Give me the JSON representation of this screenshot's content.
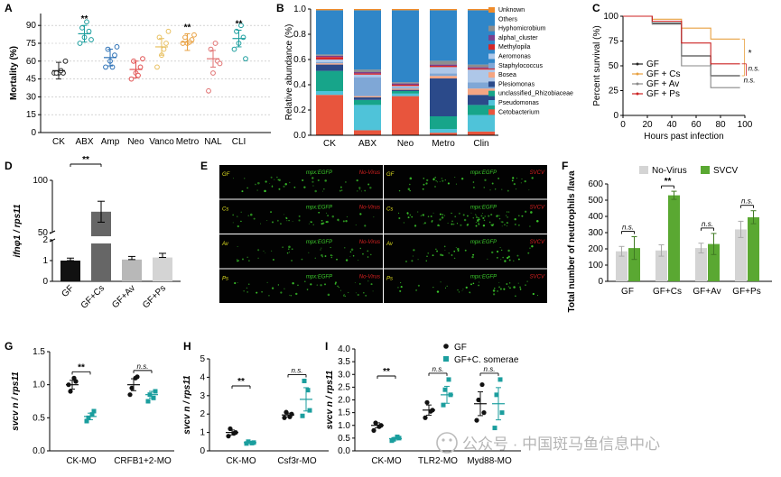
{
  "figure": {
    "panel_labels": [
      "A",
      "B",
      "C",
      "D",
      "E",
      "F",
      "G",
      "H",
      "I"
    ],
    "watermark": "公众号 · 中国斑马鱼信息中心",
    "colors": {
      "black": "#222222",
      "dark_gray": "#555555",
      "gray": "#a8a8a8",
      "light_gray": "#d4d4d4",
      "green": "#5aa832",
      "teal": "#1b9e9e",
      "orange": "#e8a040",
      "red": "#cc2222"
    }
  },
  "chart_data": [
    {
      "panel": "A",
      "type": "scatter",
      "ylabel": "Mortality (%)",
      "ylim": [
        0,
        100
      ],
      "yticks": [
        "0",
        "15",
        "30",
        "45",
        "60",
        "75",
        "90"
      ],
      "categories": [
        "CK",
        "ABX",
        "Amp",
        "Neo",
        "Vanco",
        "Metro",
        "NAL",
        "CLI"
      ],
      "colors": [
        "#222222",
        "#1b9e9e",
        "#2a6fb5",
        "#e05050",
        "#e8c060",
        "#e8a040",
        "#e07070",
        "#1b9e9e"
      ],
      "means": [
        52,
        83,
        63,
        53,
        72,
        76,
        62,
        79
      ],
      "points": [
        [
          50,
          50,
          50,
          50,
          52,
          60
        ],
        [
          75,
          80,
          85,
          88,
          93,
          78
        ],
        [
          55,
          60,
          65,
          70,
          55,
          72
        ],
        [
          45,
          50,
          55,
          60,
          48,
          62
        ],
        [
          55,
          65,
          75,
          80,
          70,
          85
        ],
        [
          75,
          75,
          78,
          80,
          76,
          82
        ],
        [
          35,
          50,
          60,
          70,
          75,
          58
        ],
        [
          70,
          75,
          80,
          85,
          90,
          62
        ]
      ],
      "significance": [
        "",
        "**",
        "",
        "",
        "",
        "**",
        "",
        "**"
      ]
    },
    {
      "panel": "B",
      "type": "bar",
      "stacked": true,
      "ylabel": "Relative abundance (%)",
      "ylim": [
        0,
        1
      ],
      "yticks": [
        "0.0",
        "0.2",
        "0.4",
        "0.6",
        "0.8",
        "1.0"
      ],
      "categories": [
        "CK",
        "ABX",
        "Neo",
        "Metro",
        "Clin"
      ],
      "legend": [
        "Unknown",
        "Others",
        "Hyphomicrobium",
        "alphaI_cluster",
        "Methylopila",
        "Aeromonas",
        "Staphylococcus",
        "Bosea",
        "Plesiomonas",
        "unclassified_Rhizobiaceae",
        "Pseudomonas",
        "Cetobacterium"
      ],
      "series_colors": [
        "#ef8b2a",
        "#2f86c8",
        "#8e8e8e",
        "#7b3f8c",
        "#d62728",
        "#aec7e8",
        "#7fa7d6",
        "#f4a582",
        "#2b4a8a",
        "#17a58a",
        "#4fc3d9",
        "#e8553d"
      ],
      "series": [
        {
          "name": "Unknown",
          "values": [
            0.01,
            0.01,
            0.01,
            0.01,
            0.01
          ]
        },
        {
          "name": "Others",
          "values": [
            0.35,
            0.47,
            0.57,
            0.4,
            0.43
          ]
        },
        {
          "name": "Hyphomicrobium",
          "values": [
            0.01,
            0.02,
            0.01,
            0.03,
            0.02
          ]
        },
        {
          "name": "alphaI_cluster",
          "values": [
            0.01,
            0.01,
            0.01,
            0.01,
            0.01
          ]
        },
        {
          "name": "Methylopila",
          "values": [
            0.02,
            0.01,
            0.01,
            0.01,
            0.01
          ]
        },
        {
          "name": "Aeromonas",
          "values": [
            0.02,
            0.02,
            0.01,
            0.05,
            0.1
          ]
        },
        {
          "name": "Staphylococcus",
          "values": [
            0.01,
            0.15,
            0.01,
            0.02,
            0.05
          ]
        },
        {
          "name": "Bosea",
          "values": [
            0.01,
            0.01,
            0.01,
            0.02,
            0.05
          ]
        },
        {
          "name": "Plesiomonas",
          "values": [
            0.05,
            0.02,
            0.01,
            0.3,
            0.08
          ]
        },
        {
          "name": "unclassified_Rhizobiaceae",
          "values": [
            0.16,
            0.04,
            0.02,
            0.1,
            0.08
          ]
        },
        {
          "name": "Pseudomonas",
          "values": [
            0.03,
            0.2,
            0.02,
            0.03,
            0.13
          ]
        },
        {
          "name": "Cetobacterium",
          "values": [
            0.32,
            0.04,
            0.31,
            0.02,
            0.03
          ]
        }
      ]
    },
    {
      "panel": "C",
      "type": "line",
      "xlabel": "Hours past infection",
      "ylabel": "Percent survival (%)",
      "xlim": [
        0,
        100
      ],
      "ylim": [
        0,
        100
      ],
      "xticks": [
        "0",
        "20",
        "40",
        "60",
        "80",
        "100"
      ],
      "yticks": [
        "0",
        "25",
        "50",
        "75",
        "100"
      ],
      "series": [
        {
          "name": "GF",
          "color": "#222222",
          "x": [
            0,
            24,
            24,
            48,
            48,
            72,
            72,
            96
          ],
          "y": [
            100,
            100,
            93,
            93,
            60,
            60,
            40,
            40
          ]
        },
        {
          "name": "GF + Cs",
          "color": "#e8a040",
          "x": [
            0,
            24,
            24,
            48,
            48,
            72,
            72,
            96
          ],
          "y": [
            100,
            100,
            97,
            97,
            88,
            88,
            77,
            77
          ]
        },
        {
          "name": "GF + Av",
          "color": "#888888",
          "x": [
            0,
            24,
            24,
            48,
            48,
            72,
            72,
            96
          ],
          "y": [
            100,
            100,
            92,
            92,
            50,
            50,
            28,
            28
          ]
        },
        {
          "name": "GF + Ps",
          "color": "#cc2222",
          "x": [
            0,
            24,
            24,
            48,
            48,
            72,
            72,
            96
          ],
          "y": [
            100,
            100,
            95,
            95,
            73,
            73,
            52,
            52
          ]
        }
      ],
      "annotations": [
        "*",
        "n.s.",
        "n.s."
      ]
    },
    {
      "panel": "D",
      "type": "bar",
      "broken_axis": true,
      "ylabel": "ifnφ1 / rps11",
      "yticks": [
        "0",
        "1",
        "2",
        "50",
        "100"
      ],
      "categories": [
        "GF",
        "GF+Cs",
        "GF+Av",
        "GF+Ps"
      ],
      "colors": [
        "#111111",
        "#666666",
        "#b8b8b8",
        "#d4d4d4"
      ],
      "values": [
        1.0,
        70,
        1.05,
        1.15
      ],
      "errors": [
        0.12,
        10,
        0.15,
        0.2
      ],
      "significance": [
        {
          "between": [
            0,
            1
          ],
          "label": "**"
        }
      ]
    },
    {
      "panel": "F",
      "type": "bar",
      "ylabel": "Total number of neutrophils /lava",
      "ylim": [
        0,
        600
      ],
      "yticks": [
        "0",
        "100",
        "200",
        "300",
        "400",
        "500",
        "600"
      ],
      "categories": [
        "GF",
        "GF+Cs",
        "GF+Av",
        "GF+Ps"
      ],
      "legend": [
        "No-Virus",
        "SVCV"
      ],
      "series_colors": [
        "#d4d4d4",
        "#5aa832"
      ],
      "series": [
        {
          "name": "No-Virus",
          "values": [
            185,
            190,
            205,
            320
          ],
          "errors": [
            30,
            35,
            30,
            50
          ]
        },
        {
          "name": "SVCV",
          "values": [
            205,
            530,
            230,
            395
          ],
          "errors": [
            70,
            25,
            65,
            40
          ]
        }
      ],
      "significance": [
        "n.s.",
        "**",
        "n.s.",
        "n.s."
      ]
    },
    {
      "panel": "G",
      "type": "scatter",
      "ylabel": "svcv n / rps11",
      "ylim": [
        0,
        1.5
      ],
      "yticks": [
        "0.0",
        "0.5",
        "1.0",
        "1.5"
      ],
      "categories": [
        "CK-MO",
        "CRFB1+2-MO"
      ],
      "series": [
        {
          "name": "GF",
          "color": "#111111",
          "points": [
            [
              1.0,
              1.05,
              0.9,
              1.1
            ],
            [
              0.85,
              1.12,
              0.95,
              1.1
            ]
          ],
          "means": [
            1.0,
            1.0
          ]
        },
        {
          "name": "GF+C. somerae",
          "color": "#1b9e9e",
          "points": [
            [
              0.45,
              0.6,
              0.5,
              0.55
            ],
            [
              0.75,
              0.9,
              0.85,
              0.8
            ]
          ],
          "means": [
            0.52,
            0.85
          ]
        }
      ],
      "significance": [
        "**",
        "n.s."
      ]
    },
    {
      "panel": "H",
      "type": "scatter",
      "ylabel": "svcv n / rps11",
      "ylim": [
        0,
        5
      ],
      "yticks": [
        "0",
        "1",
        "2",
        "3",
        "4",
        "5"
      ],
      "categories": [
        "CK-MO",
        "Csf3r-MO"
      ],
      "series": [
        {
          "name": "GF",
          "color": "#111111",
          "points": [
            [
              0.8,
              1.0,
              1.2,
              0.95
            ],
            [
              1.8,
              2.0,
              2.1,
              1.85
            ]
          ],
          "means": [
            1.0,
            1.95
          ]
        },
        {
          "name": "GF+C. somerae",
          "color": "#1b9e9e",
          "points": [
            [
              0.4,
              0.45,
              0.5,
              0.42
            ],
            [
              1.9,
              2.2,
              3.8,
              3.3
            ]
          ],
          "means": [
            0.45,
            2.8
          ]
        }
      ],
      "significance": [
        "**",
        "n.s."
      ]
    },
    {
      "panel": "I",
      "type": "scatter",
      "ylabel": "svcv n / rps11",
      "ylim": [
        0,
        4
      ],
      "yticks": [
        "0.0",
        "0.5",
        "1.0",
        "1.5",
        "2.0",
        "2.5",
        "3.0",
        "3.5",
        "4.0"
      ],
      "categories": [
        "CK-MO",
        "TLR2-MO",
        "Myd88-MO"
      ],
      "legend": [
        "GF",
        "GF+C. somerae"
      ],
      "series": [
        {
          "name": "GF",
          "color": "#111111",
          "points": [
            [
              0.8,
              1.0,
              1.1,
              0.95
            ],
            [
              1.3,
              1.6,
              1.9,
              1.55
            ],
            [
              1.2,
              1.5,
              2.0,
              2.6
            ]
          ],
          "means": [
            1.0,
            1.6,
            1.85
          ]
        },
        {
          "name": "GF+C. somerae",
          "color": "#1b9e9e",
          "points": [
            [
              0.4,
              0.5,
              0.45,
              0.55
            ],
            [
              1.8,
              2.2,
              2.4,
              2.8
            ],
            [
              0.9,
              1.5,
              2.2,
              2.8
            ]
          ],
          "means": [
            0.48,
            2.2,
            1.85
          ]
        }
      ],
      "significance": [
        "**",
        "n.s.",
        "n.s."
      ]
    }
  ],
  "panelE": {
    "rows": [
      "GF",
      "Cs",
      "Av",
      "Ps"
    ],
    "reporter": "mpx:EGFP",
    "conditions": [
      "No-Virus",
      "SVCV"
    ]
  }
}
